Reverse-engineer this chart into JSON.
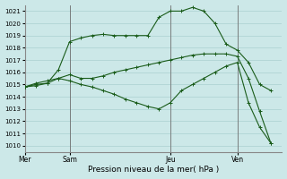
{
  "background_color": "#cce8e8",
  "grid_color": "#aad0d0",
  "line_color": "#1a5c1a",
  "title": "Pression niveau de la mer( hPa )",
  "ylim": [
    1009.5,
    1021.5
  ],
  "yticks": [
    1010,
    1011,
    1012,
    1013,
    1014,
    1015,
    1016,
    1017,
    1018,
    1019,
    1020,
    1021
  ],
  "xtick_labels": [
    "Mer",
    "Sam",
    "Jeu",
    "Ven"
  ],
  "xtick_positions": [
    0,
    4,
    13,
    19
  ],
  "vline_positions": [
    0,
    4,
    13,
    19
  ],
  "xlim": [
    0,
    23
  ],
  "series": [
    {
      "x": [
        0,
        1,
        2,
        3,
        4,
        5,
        6,
        7,
        8,
        9,
        10,
        11,
        12,
        13,
        14,
        15,
        16,
        17,
        18,
        19,
        20,
        21,
        22
      ],
      "y": [
        1014.8,
        1014.9,
        1015.1,
        1016.2,
        1018.5,
        1018.8,
        1019.0,
        1019.1,
        1019.0,
        1019.0,
        1019.0,
        1019.0,
        1020.5,
        1021.0,
        1021.0,
        1021.3,
        1021.0,
        1020.0,
        1018.3,
        1017.8,
        1016.8,
        1015.0,
        1014.5
      ]
    },
    {
      "x": [
        0,
        1,
        2,
        3,
        4,
        5,
        6,
        7,
        8,
        9,
        10,
        11,
        12,
        13,
        14,
        15,
        16,
        17,
        18,
        19,
        20,
        21,
        22
      ],
      "y": [
        1014.8,
        1015.0,
        1015.1,
        1015.5,
        1015.8,
        1015.5,
        1015.5,
        1015.7,
        1016.0,
        1016.2,
        1016.4,
        1016.6,
        1016.8,
        1017.0,
        1017.2,
        1017.4,
        1017.5,
        1017.5,
        1017.5,
        1017.3,
        1015.5,
        1012.8,
        1010.2
      ]
    },
    {
      "x": [
        0,
        1,
        2,
        3,
        4,
        5,
        6,
        7,
        8,
        9,
        10,
        11,
        12,
        13,
        14,
        15,
        16,
        17,
        18,
        19,
        20,
        21,
        22
      ],
      "y": [
        1014.8,
        1015.1,
        1015.3,
        1015.5,
        1015.3,
        1015.0,
        1014.8,
        1014.5,
        1014.2,
        1013.8,
        1013.5,
        1013.2,
        1013.0,
        1013.5,
        1014.5,
        1015.0,
        1015.5,
        1016.0,
        1016.5,
        1016.8,
        1013.5,
        1011.5,
        1010.2
      ]
    }
  ]
}
